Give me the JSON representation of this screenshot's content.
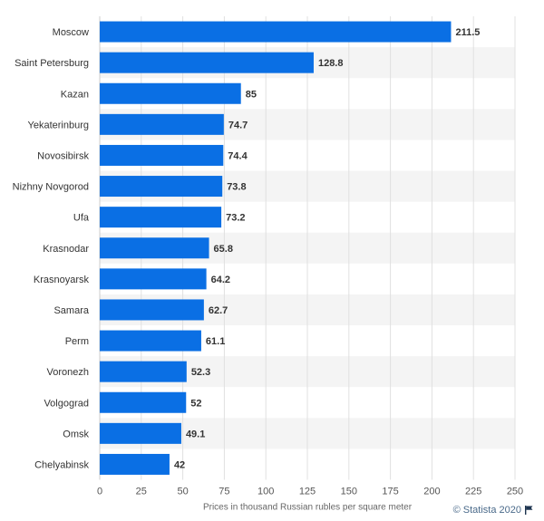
{
  "chart_data": {
    "type": "bar",
    "orientation": "horizontal",
    "categories": [
      "Moscow",
      "Saint Petersburg",
      "Kazan",
      "Yekaterinburg",
      "Novosibirsk",
      "Nizhny Novgorod",
      "Ufa",
      "Krasnodar",
      "Krasnoyarsk",
      "Samara",
      "Perm",
      "Voronezh",
      "Volgograd",
      "Omsk",
      "Chelyabinsk"
    ],
    "values": [
      211.5,
      128.8,
      85,
      74.7,
      74.4,
      73.8,
      73.2,
      65.8,
      64.2,
      62.7,
      61.1,
      52.3,
      52,
      49.1,
      42
    ],
    "value_labels": [
      "211.5",
      "128.8",
      "85",
      "74.7",
      "74.4",
      "73.8",
      "73.2",
      "65.8",
      "64.2",
      "62.7",
      "61.1",
      "52.3",
      "52",
      "49.1",
      "42"
    ],
    "title": "",
    "xlabel": "Prices in thousand Russian rubles per square meter",
    "ylabel": "",
    "xlim": [
      0,
      250
    ],
    "xticks": [
      0,
      25,
      50,
      75,
      100,
      125,
      150,
      175,
      200,
      225,
      250
    ],
    "grid": true,
    "legend": "none",
    "colors": {
      "bar": "#0a6fe4",
      "band": "#f4f4f4",
      "grid": "#e0e0e0",
      "text": "#333333",
      "value_text": "#333333"
    }
  },
  "footer": {
    "credit": "© Statista 2020",
    "flag_icon": "flag-icon"
  }
}
